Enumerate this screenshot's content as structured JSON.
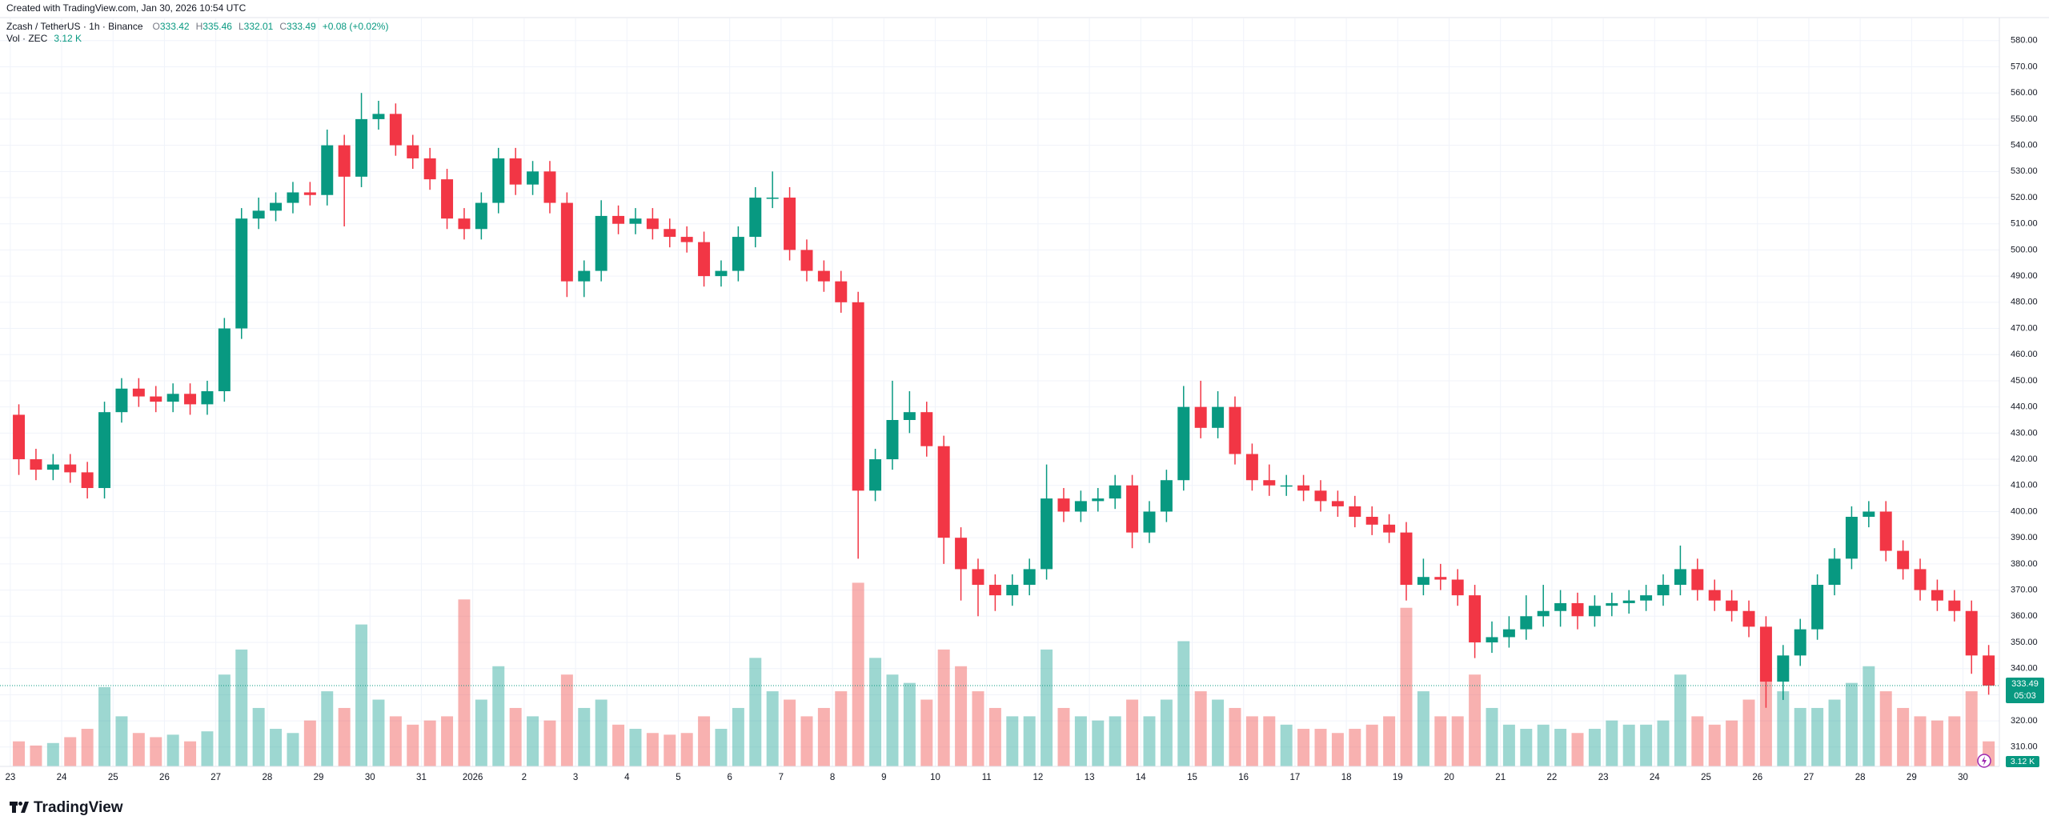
{
  "chart_data": {
    "type": "candlestick",
    "caption": "Created with TradingView.com, Jan 30, 2026 10:54 UTC",
    "title": "Zcash / TetherUS · 1h · Binance",
    "ohlc_legend": [
      {
        "name": "O",
        "value": 333.42
      },
      {
        "name": "H",
        "value": 335.46
      },
      {
        "name": "L",
        "value": 332.01
      },
      {
        "name": "C",
        "value": 333.49
      }
    ],
    "change_label": "+0.08 (+0.02%)",
    "volume_name": "Vol · ZEC",
    "volume_label": "3.12 K",
    "countdown": "05:03",
    "brand": "TradingView",
    "up_color": "#089981",
    "down_color": "#f23645",
    "volume_up_color": "#26a69a",
    "volume_down_color": "#ef5350",
    "grid": true,
    "xlim": [
      -4.8,
      929
    ],
    "xticks": [
      {
        "value": 0,
        "label": "23"
      },
      {
        "value": 24,
        "label": "24"
      },
      {
        "value": 48,
        "label": "25"
      },
      {
        "value": 72,
        "label": "26"
      },
      {
        "value": 96,
        "label": "27"
      },
      {
        "value": 120,
        "label": "28"
      },
      {
        "value": 144,
        "label": "29"
      },
      {
        "value": 168,
        "label": "30"
      },
      {
        "value": 192,
        "label": "31"
      },
      {
        "value": 216,
        "label": "2026"
      },
      {
        "value": 240,
        "label": "2"
      },
      {
        "value": 264,
        "label": "3"
      },
      {
        "value": 288,
        "label": "4"
      },
      {
        "value": 312,
        "label": "5"
      },
      {
        "value": 336,
        "label": "6"
      },
      {
        "value": 360,
        "label": "7"
      },
      {
        "value": 384,
        "label": "8"
      },
      {
        "value": 408,
        "label": "9"
      },
      {
        "value": 432,
        "label": "10"
      },
      {
        "value": 456,
        "label": "11"
      },
      {
        "value": 480,
        "label": "12"
      },
      {
        "value": 504,
        "label": "13"
      },
      {
        "value": 528,
        "label": "14"
      },
      {
        "value": 552,
        "label": "15"
      },
      {
        "value": 576,
        "label": "16"
      },
      {
        "value": 600,
        "label": "17"
      },
      {
        "value": 624,
        "label": "18"
      },
      {
        "value": 648,
        "label": "19"
      },
      {
        "value": 672,
        "label": "20"
      },
      {
        "value": 696,
        "label": "21"
      },
      {
        "value": 720,
        "label": "22"
      },
      {
        "value": 744,
        "label": "23"
      },
      {
        "value": 768,
        "label": "24"
      },
      {
        "value": 792,
        "label": "25"
      },
      {
        "value": 816,
        "label": "26"
      },
      {
        "value": 840,
        "label": "27"
      },
      {
        "value": 864,
        "label": "28"
      },
      {
        "value": 888,
        "label": "29"
      },
      {
        "value": 912,
        "label": "30"
      }
    ],
    "ylim": [
      302.6,
      588.5
    ],
    "yticks": [
      {
        "value": 580,
        "label": "580.00"
      },
      {
        "value": 570,
        "label": "570.00"
      },
      {
        "value": 560,
        "label": "560.00"
      },
      {
        "value": 550,
        "label": "550.00"
      },
      {
        "value": 540,
        "label": "540.00"
      },
      {
        "value": 530,
        "label": "530.00"
      },
      {
        "value": 520,
        "label": "520.00"
      },
      {
        "value": 510,
        "label": "510.00"
      },
      {
        "value": 500,
        "label": "500.00"
      },
      {
        "value": 490,
        "label": "490.00"
      },
      {
        "value": 480,
        "label": "480.00"
      },
      {
        "value": 470,
        "label": "470.00"
      },
      {
        "value": 460,
        "label": "460.00"
      },
      {
        "value": 450,
        "label": "450.00"
      },
      {
        "value": 440,
        "label": "440.00"
      },
      {
        "value": 430,
        "label": "430.00"
      },
      {
        "value": 420,
        "label": "420.00"
      },
      {
        "value": 410,
        "label": "410.00"
      },
      {
        "value": 400,
        "label": "400.00"
      },
      {
        "value": 390,
        "label": "390.00"
      },
      {
        "value": 380,
        "label": "380.00"
      },
      {
        "value": 370,
        "label": "370.00"
      },
      {
        "value": 360,
        "label": "360.00"
      },
      {
        "value": 350,
        "label": "350.00"
      },
      {
        "value": 340,
        "label": "340.00"
      },
      {
        "value": 330,
        "label": "330.00"
      },
      {
        "value": 320,
        "label": "320.00"
      },
      {
        "value": 310,
        "label": "310.00"
      }
    ],
    "vlim": [
      0,
      230
    ],
    "x": [
      4,
      12,
      20,
      28,
      36,
      44,
      52,
      60,
      68,
      76,
      84,
      92,
      100,
      108,
      116,
      124,
      132,
      140,
      148,
      156,
      164,
      172,
      180,
      188,
      196,
      204,
      212,
      220,
      228,
      236,
      244,
      252,
      260,
      268,
      276,
      284,
      292,
      300,
      308,
      316,
      324,
      332,
      340,
      348,
      356,
      364,
      372,
      380,
      388,
      396,
      404,
      412,
      420,
      428,
      436,
      444,
      452,
      460,
      468,
      476,
      484,
      492,
      500,
      508,
      516,
      524,
      532,
      540,
      548,
      556,
      564,
      572,
      580,
      588,
      596,
      604,
      612,
      620,
      628,
      636,
      644,
      652,
      660,
      668,
      676,
      684,
      692,
      700,
      708,
      716,
      724,
      732,
      740,
      748,
      756,
      764,
      772,
      780,
      788,
      796,
      804,
      812,
      820,
      828,
      836,
      844,
      852,
      860,
      868,
      876,
      884,
      892,
      900,
      908,
      916,
      924
    ],
    "open": [
      437,
      420,
      416,
      418,
      415,
      409,
      438,
      447,
      444,
      442,
      445,
      441,
      446,
      470,
      512,
      515,
      518,
      522,
      521,
      540,
      528,
      550,
      552,
      540,
      535,
      527,
      512,
      508,
      518,
      535,
      525,
      530,
      518,
      488,
      492,
      513,
      510,
      512,
      508,
      505,
      503,
      490,
      492,
      505,
      520,
      520,
      500,
      492,
      488,
      480,
      408,
      420,
      435,
      438,
      425,
      390,
      378,
      372,
      368,
      372,
      378,
      405,
      400,
      404,
      405,
      410,
      392,
      400,
      412,
      440,
      432,
      440,
      422,
      412,
      410,
      410,
      408,
      404,
      402,
      398,
      395,
      392,
      372,
      375,
      374,
      368,
      350,
      352,
      355,
      360,
      362,
      365,
      360,
      364,
      365,
      366,
      368,
      372,
      378,
      370,
      366,
      362,
      356,
      335,
      345,
      355,
      372,
      382,
      398,
      400,
      385,
      378,
      370,
      366,
      362,
      345
    ],
    "high": [
      441,
      424,
      422,
      422,
      419,
      442,
      451,
      451,
      448,
      449,
      449,
      450,
      474,
      516,
      520,
      522,
      526,
      526,
      546,
      544,
      560,
      557,
      556,
      544,
      539,
      531,
      516,
      522,
      539,
      539,
      534,
      534,
      522,
      496,
      519,
      517,
      516,
      516,
      512,
      509,
      507,
      496,
      509,
      524,
      530,
      524,
      504,
      496,
      492,
      484,
      424,
      450,
      446,
      442,
      429,
      394,
      382,
      376,
      376,
      382,
      418,
      409,
      408,
      409,
      414,
      414,
      404,
      416,
      448,
      450,
      446,
      444,
      426,
      418,
      414,
      414,
      412,
      408,
      406,
      402,
      399,
      396,
      382,
      380,
      378,
      372,
      358,
      360,
      368,
      372,
      370,
      369,
      368,
      369,
      370,
      372,
      376,
      387,
      382,
      374,
      370,
      366,
      360,
      349,
      359,
      376,
      386,
      402,
      404,
      404,
      389,
      382,
      374,
      370,
      366,
      349
    ],
    "low": [
      414,
      412,
      412,
      411,
      405,
      405,
      434,
      440,
      438,
      438,
      437,
      437,
      442,
      466,
      508,
      511,
      514,
      517,
      517,
      509,
      524,
      546,
      536,
      531,
      523,
      508,
      504,
      504,
      514,
      521,
      521,
      514,
      482,
      482,
      488,
      506,
      506,
      504,
      501,
      499,
      486,
      486,
      488,
      501,
      516,
      496,
      488,
      484,
      476,
      382,
      404,
      416,
      430,
      421,
      380,
      366,
      360,
      362,
      364,
      368,
      374,
      396,
      396,
      400,
      401,
      386,
      388,
      396,
      408,
      428,
      428,
      418,
      408,
      406,
      406,
      404,
      400,
      398,
      394,
      391,
      388,
      366,
      368,
      370,
      364,
      344,
      346,
      348,
      351,
      356,
      356,
      355,
      356,
      360,
      361,
      362,
      364,
      368,
      366,
      362,
      358,
      352,
      325,
      328,
      341,
      351,
      368,
      378,
      394,
      381,
      374,
      366,
      362,
      358,
      338,
      330
    ],
    "close": [
      420,
      416,
      418,
      415,
      409,
      438,
      447,
      444,
      442,
      445,
      441,
      446,
      470,
      512,
      515,
      518,
      522,
      521,
      540,
      528,
      550,
      552,
      540,
      535,
      527,
      512,
      508,
      518,
      535,
      525,
      530,
      518,
      488,
      492,
      513,
      510,
      512,
      508,
      505,
      503,
      490,
      492,
      505,
      520,
      520,
      500,
      492,
      488,
      480,
      408,
      420,
      435,
      438,
      425,
      390,
      378,
      372,
      368,
      372,
      378,
      405,
      400,
      404,
      405,
      410,
      392,
      400,
      412,
      440,
      432,
      440,
      422,
      412,
      410,
      410,
      408,
      404,
      402,
      398,
      395,
      392,
      372,
      375,
      374,
      368,
      350,
      352,
      355,
      360,
      362,
      365,
      360,
      364,
      365,
      366,
      368,
      372,
      378,
      370,
      366,
      362,
      356,
      335,
      345,
      355,
      372,
      382,
      398,
      400,
      385,
      378,
      370,
      366,
      362,
      345,
      333.49
    ],
    "volume": [
      30,
      25,
      28,
      35,
      45,
      95,
      60,
      40,
      35,
      38,
      30,
      42,
      110,
      140,
      70,
      45,
      40,
      55,
      90,
      70,
      170,
      80,
      60,
      50,
      55,
      60,
      200,
      80,
      120,
      70,
      60,
      55,
      110,
      70,
      80,
      50,
      45,
      40,
      38,
      40,
      60,
      45,
      70,
      130,
      90,
      80,
      60,
      70,
      90,
      220,
      130,
      110,
      100,
      80,
      140,
      120,
      90,
      70,
      60,
      60,
      140,
      70,
      60,
      55,
      60,
      80,
      60,
      80,
      150,
      90,
      80,
      70,
      60,
      60,
      50,
      45,
      45,
      40,
      45,
      50,
      60,
      190,
      90,
      60,
      60,
      110,
      70,
      50,
      45,
      50,
      45,
      40,
      45,
      55,
      50,
      50,
      55,
      110,
      60,
      50,
      55,
      80,
      150,
      90,
      70,
      70,
      80,
      100,
      120,
      90,
      70,
      60,
      55,
      60,
      90,
      30
    ]
  }
}
